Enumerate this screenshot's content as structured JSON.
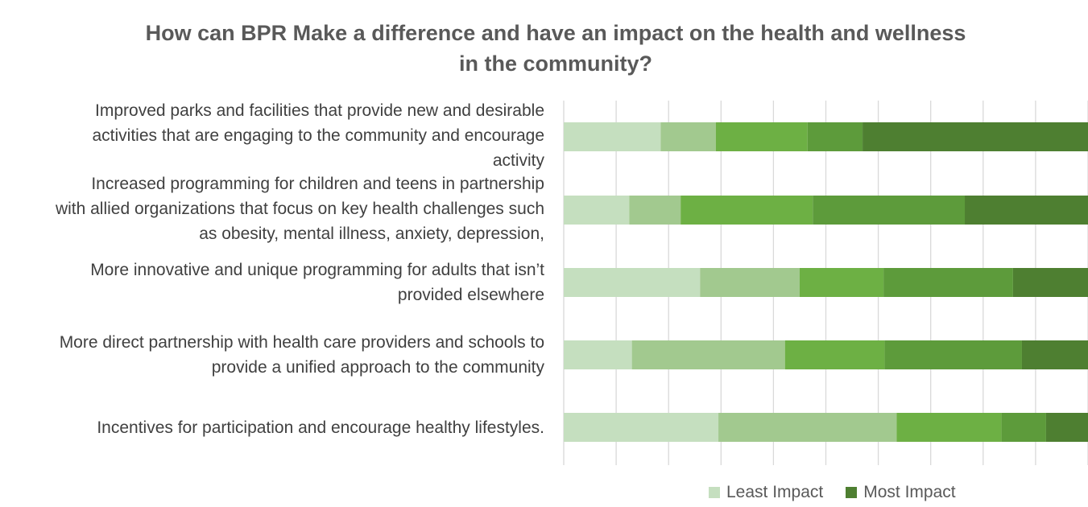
{
  "chart_data": {
    "type": "bar",
    "orientation": "horizontal",
    "stacked": "100%",
    "title": "How can BPR Make a difference and have an impact on the health and wellness in the community?",
    "title_lines": [
      "How can BPR Make a difference and have an impact on the health and wellness",
      "in the community?"
    ],
    "categories": [
      "Improved parks and facilities that provide new and desirable activities that are engaging to the community and encourage activity",
      "Increased programming for children and teens in partnership with allied organizations that focus on key health challenges such as obesity, mental illness, anxiety, depression,",
      "More innovative and unique programming for adults that isn’t provided elsewhere",
      "More direct partnership with health care providers and schools to provide a unified approach to the community",
      "Incentives for participation and encourage healthy lifestyles."
    ],
    "category_lines": [
      [
        "Improved parks and facilities that provide new and desirable",
        "activities that are engaging to the community and encourage",
        "activity"
      ],
      [
        "Increased programming for children and teens in partnership",
        "with allied organizations that focus on key health challenges such",
        "as obesity, mental illness, anxiety, depression,"
      ],
      [
        "More innovative and unique programming for adults that isn’t",
        "provided elsewhere"
      ],
      [
        "More direct partnership with health care providers and schools to",
        "provide a unified approach to the community"
      ],
      [
        "Incentives for participation and encourage healthy lifestyles."
      ]
    ],
    "series": [
      {
        "name": "Least Impact",
        "color": "#c5dfbf",
        "values": [
          18.5,
          12.5,
          26.0,
          13.0,
          29.5
        ]
      },
      {
        "color": "#a2c98f",
        "values": [
          10.5,
          9.8,
          19.0,
          29.2,
          34.0
        ]
      },
      {
        "color": "#6db044",
        "values": [
          17.5,
          25.2,
          16.0,
          19.0,
          20.0
        ]
      },
      {
        "color": "#5d9b3b",
        "values": [
          10.5,
          29.0,
          24.7,
          26.2,
          8.5
        ]
      },
      {
        "name": "Most Impact",
        "color": "#4e7f31",
        "values": [
          43.0,
          23.5,
          14.3,
          12.6,
          8.0
        ]
      }
    ],
    "xlim": [
      0,
      100
    ],
    "grid": true,
    "legend_position": "bottom-right"
  }
}
